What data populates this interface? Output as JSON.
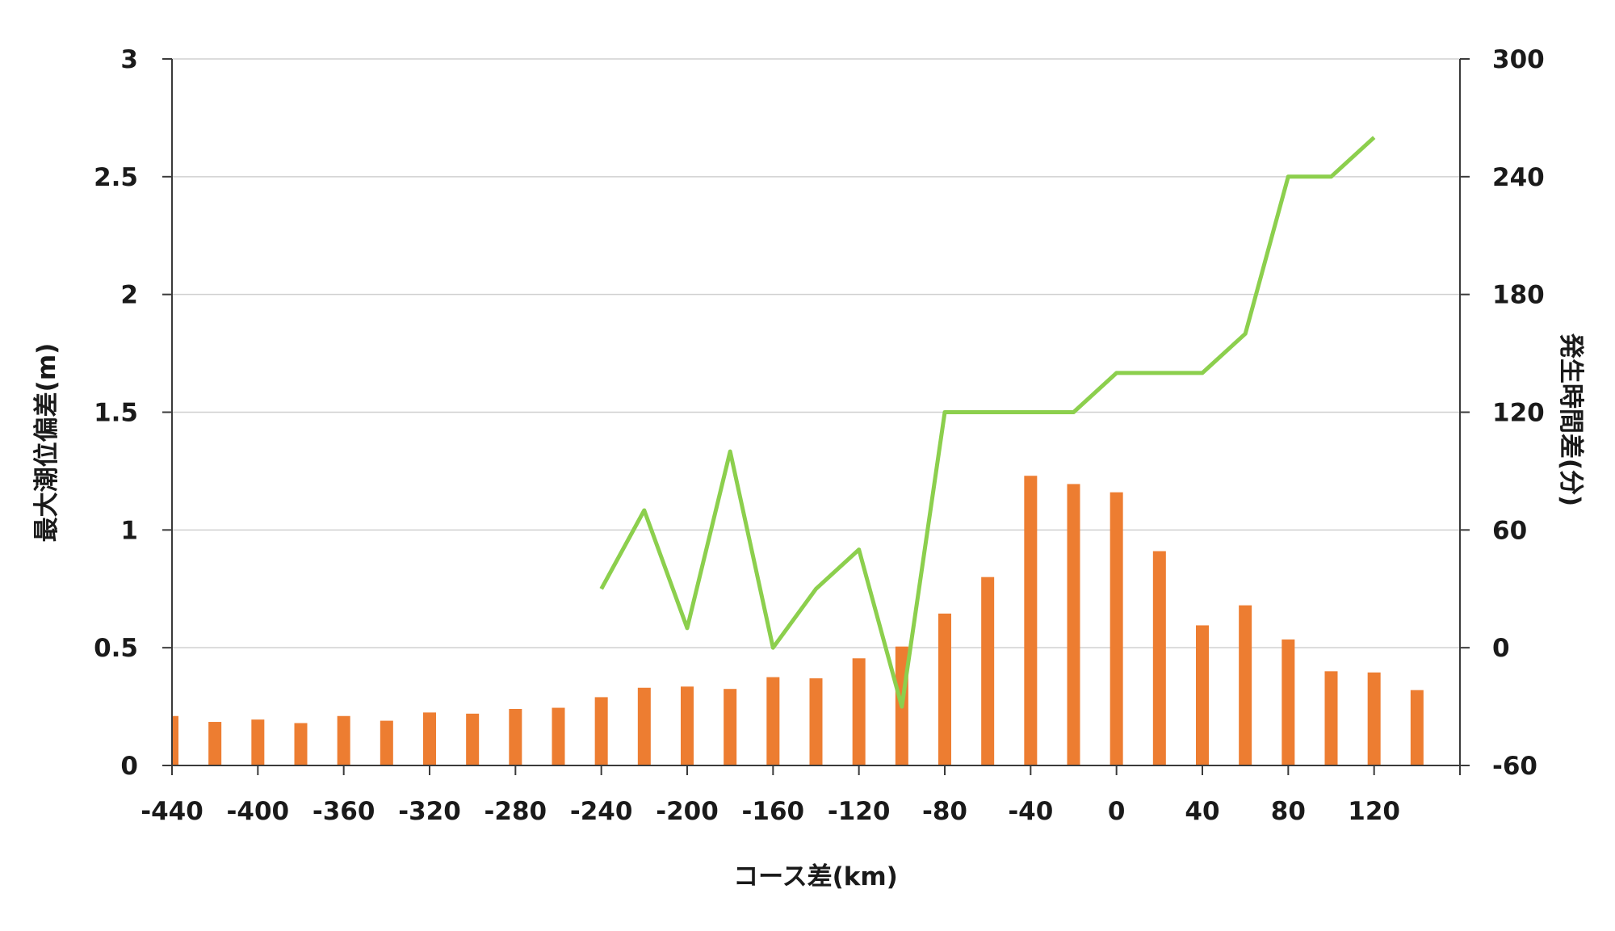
{
  "chart_data": {
    "type": "bar+line",
    "title": "",
    "xlabel": "コース差(km)",
    "ylabel_left": "最大潮位偏差(m)",
    "ylabel_right": "発生時間差(分)",
    "x_ticks": [
      "-440",
      "-400",
      "-360",
      "-320",
      "-280",
      "-240",
      "-200",
      "-160",
      "-120",
      "-80",
      "-40",
      "0",
      "40",
      "80",
      "120"
    ],
    "y_left_ticks": [
      "0",
      "0.5",
      "1",
      "1.5",
      "2",
      "2.5",
      "3"
    ],
    "y_right_ticks": [
      "-60",
      "0",
      "60",
      "120",
      "180",
      "240",
      "300"
    ],
    "x_range": [
      -440,
      160
    ],
    "y_left_range": [
      0,
      3
    ],
    "y_right_range": [
      -60,
      300
    ],
    "grid": true,
    "legend": "none",
    "colors": {
      "bar": "#ed7d31",
      "line": "#8ccf4d"
    },
    "bar_series": {
      "axis": "left",
      "x": [
        -440,
        -420,
        -400,
        -380,
        -360,
        -340,
        -320,
        -300,
        -280,
        -260,
        -240,
        -220,
        -200,
        -180,
        -160,
        -140,
        -120,
        -100,
        -80,
        -60,
        -40,
        -20,
        0,
        20,
        40,
        60,
        80,
        100,
        120,
        140
      ],
      "values": [
        0.21,
        0.185,
        0.195,
        0.18,
        0.21,
        0.19,
        0.225,
        0.22,
        0.24,
        0.245,
        0.29,
        0.33,
        0.335,
        0.325,
        0.375,
        0.37,
        0.455,
        0.505,
        0.645,
        0.8,
        1.23,
        1.195,
        1.16,
        0.91,
        0.595,
        0.68,
        0.535,
        0.4,
        0.395,
        0.32
      ]
    },
    "line_series": {
      "axis": "right",
      "x": [
        -240,
        -220,
        -200,
        -180,
        -160,
        -140,
        -120,
        -100,
        -80,
        -60,
        -40,
        -20,
        0,
        20,
        40,
        60,
        80,
        100,
        120
      ],
      "values": [
        30,
        70,
        10,
        100,
        0,
        30,
        50,
        -30,
        120,
        120,
        120,
        120,
        140,
        140,
        140,
        160,
        240,
        240,
        260
      ]
    }
  }
}
